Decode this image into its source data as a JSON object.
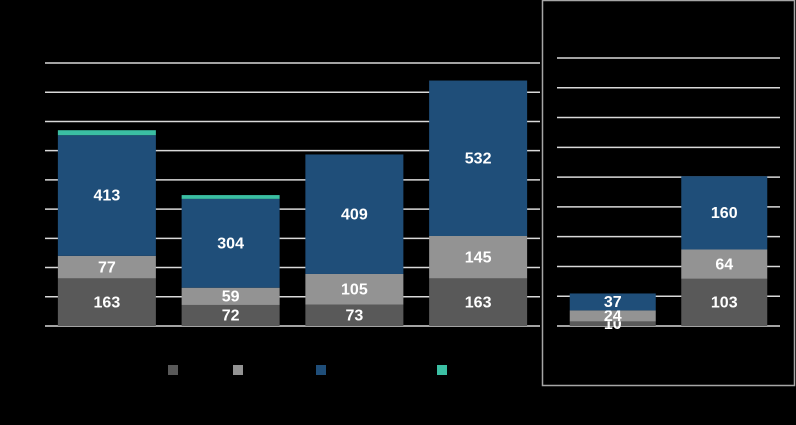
{
  "chart_data": [
    {
      "type": "bar",
      "stacked": true,
      "categories": [
        null,
        null,
        null,
        null
      ],
      "ylim": [
        0,
        900
      ],
      "yticks": [
        0,
        100,
        200,
        300,
        400,
        500,
        600,
        700,
        800,
        900
      ],
      "grid": true,
      "legend": "bottom",
      "series": [
        {
          "color": "#595959",
          "values": [
            163,
            72,
            73,
            163
          ],
          "labels": true
        },
        {
          "color": "#939393",
          "values": [
            77,
            59,
            105,
            145
          ],
          "labels": true
        },
        {
          "color": "#1f4e79",
          "values": [
            413,
            304,
            409,
            532
          ],
          "labels": true
        },
        {
          "color": "#3bbfa3",
          "values": [
            17,
            13,
            null,
            null
          ],
          "labels": false
        }
      ]
    },
    {
      "type": "bar",
      "stacked": true,
      "categories": [
        null,
        null
      ],
      "framed": true,
      "ylim": [
        0,
        585
      ],
      "yticks": [
        0,
        65,
        130,
        195,
        260,
        325,
        390,
        455,
        520,
        585
      ],
      "grid": true,
      "series": [
        {
          "color": "#595959",
          "values": [
            10,
            103
          ],
          "labels": true
        },
        {
          "color": "#939393",
          "values": [
            24,
            64
          ],
          "labels": true
        },
        {
          "color": "#1f4e79",
          "values": [
            37,
            160
          ],
          "labels": true
        }
      ]
    }
  ]
}
